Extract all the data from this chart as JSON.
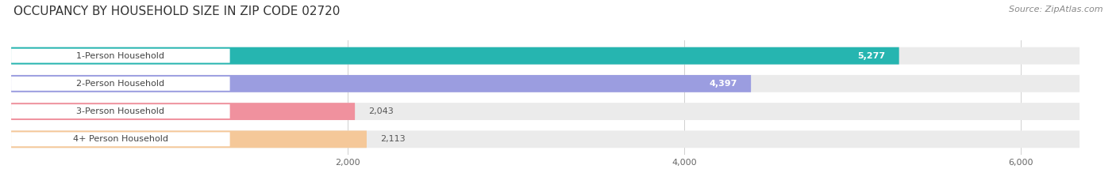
{
  "title": "OCCUPANCY BY HOUSEHOLD SIZE IN ZIP CODE 02720",
  "source": "Source: ZipAtlas.com",
  "categories": [
    "1-Person Household",
    "2-Person Household",
    "3-Person Household",
    "4+ Person Household"
  ],
  "values": [
    5277,
    4397,
    2043,
    2113
  ],
  "bar_colors": [
    "#26b5b0",
    "#9b9de0",
    "#f0919e",
    "#f5c899"
  ],
  "value_labels": [
    "5,277",
    "4,397",
    "2,043",
    "2,113"
  ],
  "background_color": "#ffffff",
  "bar_bg_color": "#ebebeb",
  "label_pill_color": "#ffffff",
  "title_fontsize": 11,
  "source_fontsize": 8,
  "cat_fontsize": 8,
  "value_fontsize": 8,
  "tick_fontsize": 8,
  "bar_height": 0.62,
  "xlim_max": 6500,
  "bg_bar_max": 6350,
  "xticks": [
    2000,
    4000,
    6000
  ],
  "xtick_labels": [
    "2,000",
    "4,000",
    "6,000"
  ],
  "fig_width": 14.06,
  "fig_height": 2.33,
  "value_threshold": 2500,
  "value1_white_text": true
}
